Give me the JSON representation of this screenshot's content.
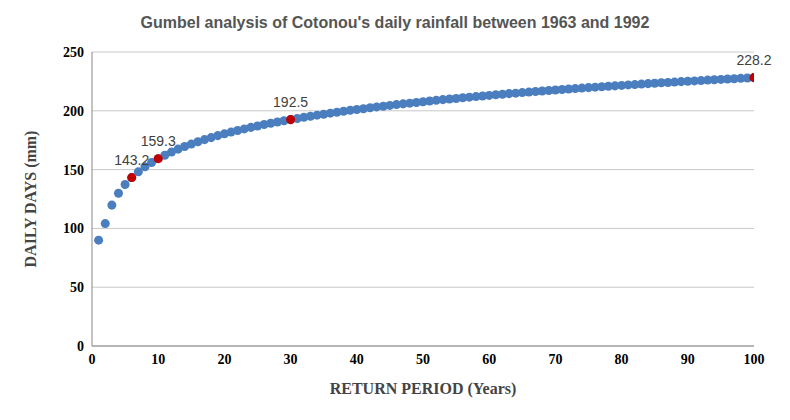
{
  "chart_data": {
    "type": "scatter",
    "title": "Gumbel analysis of Cotonou's daily rainfall between 1963 and 1992",
    "xlabel": "RETURN PERIOD (Years)",
    "ylabel": "DAILY DAYS (mm)",
    "xlim": [
      0,
      100
    ],
    "xticks": [
      0,
      10,
      20,
      30,
      40,
      50,
      60,
      70,
      80,
      90,
      100
    ],
    "ylim": [
      0,
      250
    ],
    "yticks": [
      0,
      50,
      100,
      150,
      200,
      250
    ],
    "grid": true,
    "series": [
      {
        "color": "#4a7ebf",
        "marker": "circle",
        "x": [
          1,
          2,
          3,
          4,
          5,
          6,
          7,
          8,
          9,
          10,
          11,
          12,
          13,
          14,
          15,
          16,
          17,
          18,
          19,
          20,
          21,
          22,
          23,
          24,
          25,
          26,
          27,
          28,
          29,
          30,
          31,
          32,
          33,
          34,
          35,
          36,
          37,
          38,
          39,
          40,
          41,
          42,
          43,
          44,
          45,
          46,
          47,
          48,
          49,
          50,
          51,
          52,
          53,
          54,
          55,
          56,
          57,
          58,
          59,
          60,
          61,
          62,
          63,
          64,
          65,
          66,
          67,
          68,
          69,
          70,
          71,
          72,
          73,
          74,
          75,
          76,
          77,
          78,
          79,
          80,
          81,
          82,
          83,
          84,
          85,
          86,
          87,
          88,
          89,
          90,
          91,
          92,
          93,
          94,
          95,
          96,
          97,
          98,
          99,
          100
        ],
        "values": [
          90,
          104.1,
          119.8,
          129.9,
          137.3,
          143.2,
          148.1,
          152.4,
          156.0,
          159.3,
          162.2,
          164.9,
          167.4,
          169.6,
          171.7,
          173.7,
          175.5,
          177.2,
          178.9,
          180.4,
          181.9,
          183.3,
          184.6,
          185.9,
          187.1,
          188.3,
          189.4,
          190.5,
          191.5,
          192.5,
          193.5,
          194.5,
          195.4,
          196.3,
          197.1,
          198.0,
          198.8,
          199.6,
          200.4,
          201.1,
          201.8,
          202.6,
          203.3,
          203.9,
          204.6,
          205.3,
          205.9,
          206.5,
          207.1,
          207.7,
          208.3,
          208.9,
          209.5,
          210.0,
          210.5,
          211.1,
          211.6,
          212.1,
          212.6,
          213.1,
          213.6,
          214.1,
          214.6,
          215.0,
          215.5,
          215.9,
          216.4,
          216.8,
          217.3,
          217.7,
          218.1,
          218.5,
          218.9,
          219.3,
          219.7,
          220.1,
          220.5,
          220.9,
          221.2,
          221.6,
          222.0,
          222.3,
          222.7,
          223.1,
          223.4,
          223.8,
          224.1,
          224.4,
          224.8,
          225.1,
          225.4,
          225.7,
          226.1,
          226.4,
          226.7,
          227.0,
          227.3,
          227.6,
          227.9,
          228.2
        ]
      },
      {
        "color": "#c00000",
        "marker": "circle",
        "data_labels": true,
        "x": [
          6,
          10,
          30,
          100
        ],
        "values": [
          143.2,
          159.3,
          192.5,
          228.2
        ]
      }
    ]
  }
}
